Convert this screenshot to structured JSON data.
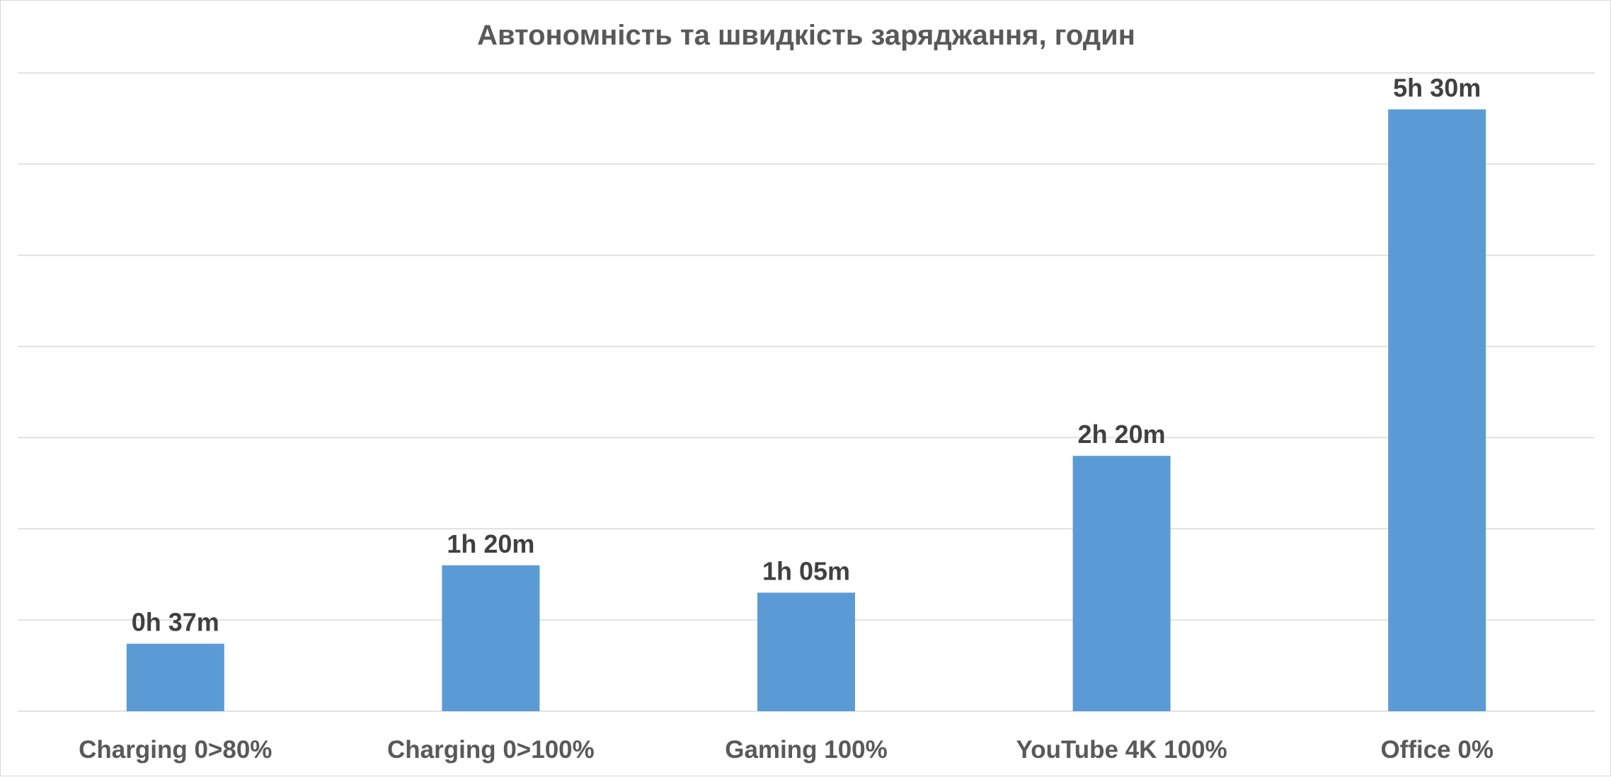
{
  "chart_data": {
    "type": "bar",
    "title": "Автономність та швидкість заряджання, годин",
    "xlabel": "",
    "ylabel": "",
    "categories": [
      "Charging 0>80%",
      "Charging 0>100%",
      "Gaming 100%",
      "YouTube 4K 100%",
      "Office 0%"
    ],
    "values": [
      37,
      80,
      65,
      140,
      330
    ],
    "value_unit": "minutes",
    "data_labels": [
      "0h 37m",
      "1h 20m",
      "1h 05m",
      "2h 20m",
      "5h 30m"
    ],
    "ylim": [
      0,
      350
    ],
    "ytick_step": 50,
    "grid": true,
    "y_axis_labels_visible": false,
    "legend": "none",
    "colors": {
      "bar": "#5b9bd5",
      "grid": "#d9d9d9",
      "title": "#595959",
      "data_label": "#404040",
      "tick_label": "#595959"
    }
  }
}
